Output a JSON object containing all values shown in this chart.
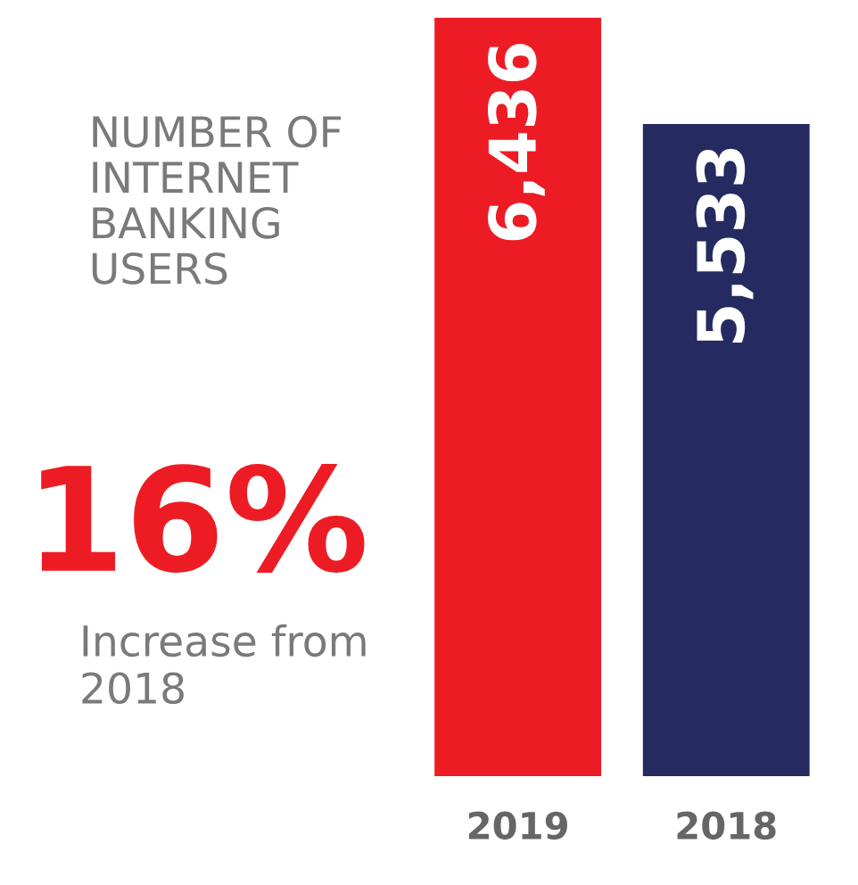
{
  "chart_data": {
    "type": "bar",
    "title": "NUMBER OF INTERNET BANKING USERS",
    "categories": [
      "2019",
      "2018"
    ],
    "values": [
      6436,
      5533
    ],
    "colors": [
      "#ed1c24",
      "#252a60"
    ],
    "value_labels": [
      "6,436",
      "5,533"
    ],
    "annotations": [
      "16%",
      "Increase from 2018"
    ]
  }
}
